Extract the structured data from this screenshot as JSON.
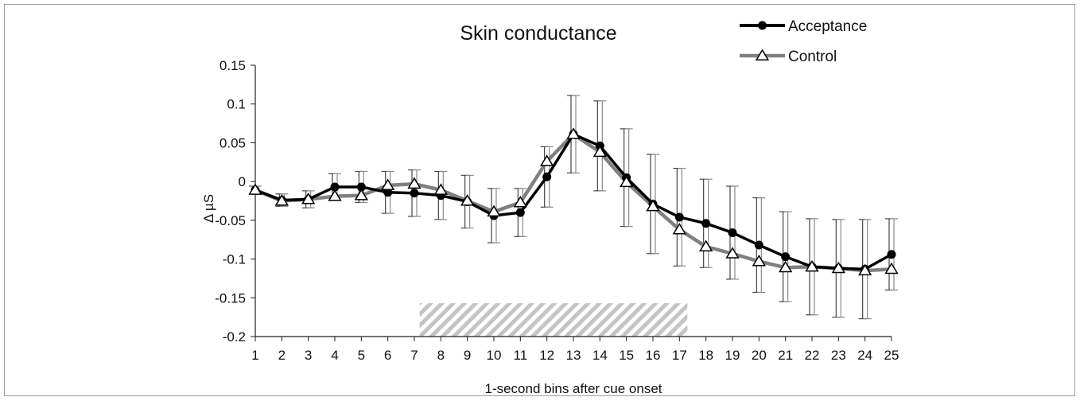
{
  "chart_data": {
    "type": "line",
    "title": "Skin conductance",
    "xlabel": "1-second bins after cue onset",
    "ylabel": "Δ µS",
    "x": [
      1,
      2,
      3,
      4,
      5,
      6,
      7,
      8,
      9,
      10,
      11,
      12,
      13,
      14,
      15,
      16,
      17,
      18,
      19,
      20,
      21,
      22,
      23,
      24,
      25
    ],
    "x_tick_labels": [
      "1",
      "2",
      "3",
      "4",
      "5",
      "6",
      "7",
      "8",
      "9",
      "10",
      "11",
      "12",
      "13",
      "14",
      "15",
      "16",
      "17",
      "18",
      "19",
      "20",
      "21",
      "22",
      "23",
      "24",
      "25"
    ],
    "ylim": [
      -0.2,
      0.15
    ],
    "y_ticks": [
      0.15,
      0.1,
      0.05,
      0,
      -0.05,
      -0.1,
      -0.15,
      -0.2
    ],
    "y_tick_labels": [
      "0.15",
      "0.1",
      "0.05",
      "0",
      "-0.05",
      "-0.1",
      "-0.15",
      "-0.2"
    ],
    "grid": false,
    "legend_position": "top-right",
    "shaded_region": {
      "x_start": 7.2,
      "x_end": 17.3,
      "pattern": "diagonal-hatch",
      "color": "#bdbdbd"
    },
    "series": [
      {
        "name": "Acceptance",
        "color": "#000000",
        "marker": "filled-circle",
        "values": [
          -0.011,
          -0.024,
          -0.023,
          -0.007,
          -0.007,
          -0.014,
          -0.015,
          -0.018,
          -0.026,
          -0.044,
          -0.04,
          0.006,
          0.061,
          0.046,
          0.005,
          -0.029,
          -0.046,
          -0.054,
          -0.066,
          -0.082,
          -0.097,
          -0.11,
          -0.112,
          -0.113,
          -0.094
        ],
        "error": [
          0.005,
          0.008,
          0.011,
          0.017,
          0.02,
          0.027,
          0.03,
          0.031,
          0.034,
          0.035,
          0.031,
          0.039,
          0.05,
          0.058,
          0.063,
          0.064,
          0.063,
          0.057,
          0.06,
          0.061,
          0.058,
          0.062,
          0.063,
          0.064,
          0.046
        ]
      },
      {
        "name": "Control",
        "color": "#808080",
        "marker": "open-triangle",
        "values": [
          -0.011,
          -0.025,
          -0.023,
          -0.019,
          -0.018,
          -0.005,
          -0.003,
          -0.011,
          -0.025,
          -0.039,
          -0.027,
          0.026,
          0.061,
          0.038,
          -0.001,
          -0.032,
          -0.062,
          -0.084,
          -0.093,
          -0.103,
          -0.111,
          -0.11,
          -0.112,
          -0.115,
          -0.113
        ]
      }
    ]
  }
}
